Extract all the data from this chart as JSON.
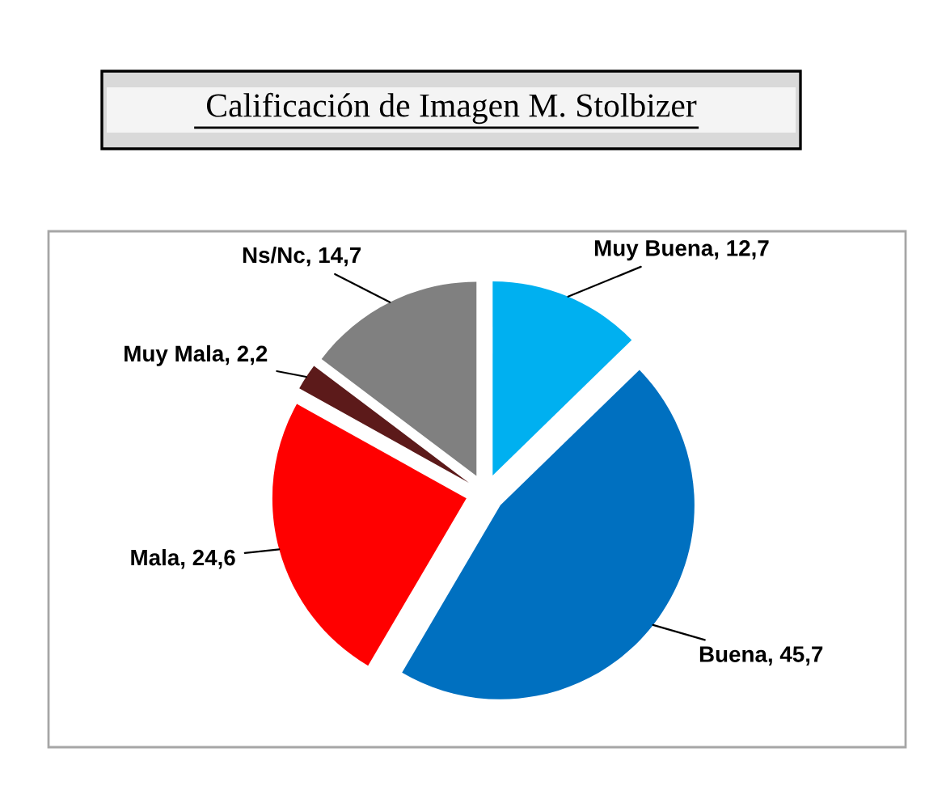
{
  "chart_data": {
    "type": "pie",
    "title": "Calificación de Imagen M. Stolbizer",
    "categories": [
      "Muy Buena",
      "Buena",
      "Mala",
      "Muy Mala",
      "Ns/Nc"
    ],
    "values": [
      12.7,
      45.7,
      24.6,
      2.2,
      14.7
    ],
    "colors": [
      "#00b0f0",
      "#0070c0",
      "#ff0000",
      "#5c1a1a",
      "#808080"
    ],
    "value_labels": [
      "12,7",
      "45,7",
      "24,6",
      "2,2",
      "14,7"
    ]
  }
}
